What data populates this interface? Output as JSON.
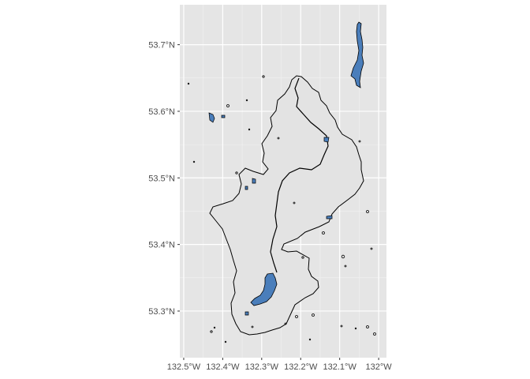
{
  "map": {
    "projection": "geographic",
    "lon_range": [
      -132.51,
      -131.98
    ],
    "lat_range": [
      53.23,
      53.76
    ],
    "x_ticks": [
      {
        "value": -132.5,
        "label": "132.5°W"
      },
      {
        "value": -132.4,
        "label": "132.4°W"
      },
      {
        "value": -132.3,
        "label": "132.3°W"
      },
      {
        "value": -132.2,
        "label": "132.2°W"
      },
      {
        "value": -132.1,
        "label": "132.1°W"
      },
      {
        "value": -132.0,
        "label": "132°W"
      }
    ],
    "y_ticks": [
      {
        "value": 53.3,
        "label": "53.3°N"
      },
      {
        "value": 53.4,
        "label": "53.4°N"
      },
      {
        "value": 53.5,
        "label": "53.5°N"
      },
      {
        "value": 53.6,
        "label": "53.6°N"
      },
      {
        "value": 53.7,
        "label": "53.7°N"
      }
    ],
    "colors": {
      "panel_background": "#e5e5e5",
      "grid_major": "#ffffff",
      "grid_minor": "#f2f2f2",
      "watershed_fill": "#e3e3e3",
      "water_fill": "#4a7ebb",
      "outline": "#000000"
    },
    "grid": true
  }
}
